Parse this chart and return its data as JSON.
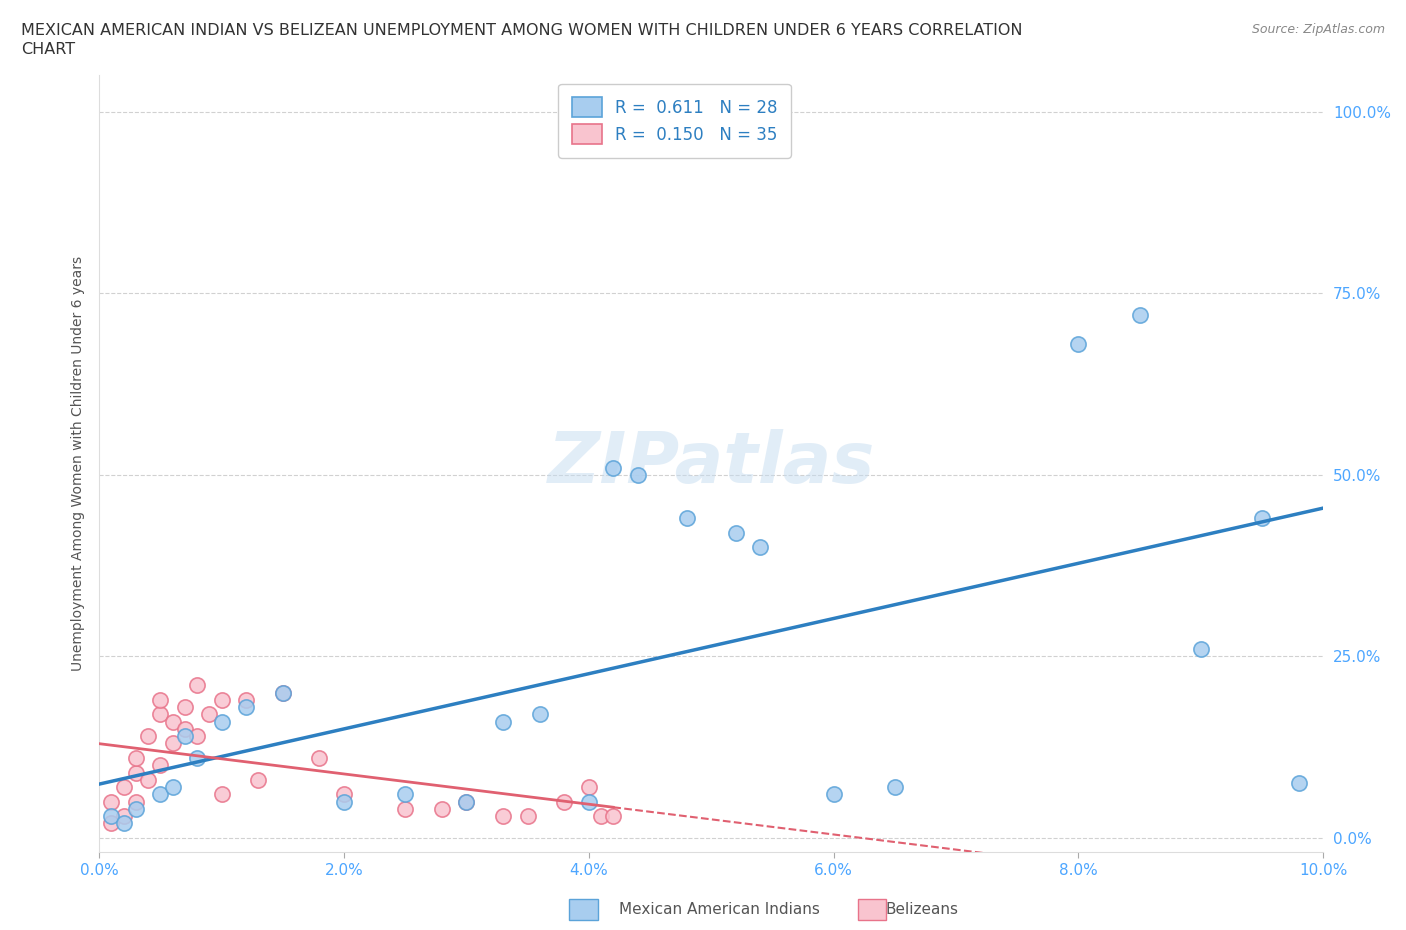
{
  "title_line1": "MEXICAN AMERICAN INDIAN VS BELIZEAN UNEMPLOYMENT AMONG WOMEN WITH CHILDREN UNDER 6 YEARS CORRELATION",
  "title_line2": "CHART",
  "source": "Source: ZipAtlas.com",
  "ylabel": "Unemployment Among Women with Children Under 6 years",
  "xlim": [
    0,
    0.1
  ],
  "ylim": [
    -0.02,
    1.05
  ],
  "blue_R": 0.611,
  "blue_N": 28,
  "pink_R": 0.15,
  "pink_N": 35,
  "blue_fill_color": "#A8CDEF",
  "pink_fill_color": "#F9C4CF",
  "blue_edge_color": "#5BA3D9",
  "pink_edge_color": "#E8738A",
  "blue_line_color": "#2D7FC1",
  "pink_line_color": "#E06070",
  "legend_R_color": "#2D7FC1",
  "axis_tick_color": "#4DA6FF",
  "blue_scatter_x": [
    0.001,
    0.002,
    0.003,
    0.005,
    0.006,
    0.007,
    0.008,
    0.01,
    0.012,
    0.015,
    0.02,
    0.025,
    0.03,
    0.033,
    0.036,
    0.04,
    0.042,
    0.044,
    0.048,
    0.052,
    0.054,
    0.06,
    0.065,
    0.08,
    0.085,
    0.09,
    0.095,
    0.098
  ],
  "blue_scatter_y": [
    0.03,
    0.02,
    0.04,
    0.06,
    0.07,
    0.14,
    0.11,
    0.16,
    0.18,
    0.2,
    0.05,
    0.06,
    0.05,
    0.16,
    0.17,
    0.05,
    0.51,
    0.5,
    0.44,
    0.42,
    0.4,
    0.06,
    0.07,
    0.68,
    0.72,
    0.26,
    0.44,
    0.075
  ],
  "pink_scatter_x": [
    0.001,
    0.001,
    0.002,
    0.002,
    0.003,
    0.003,
    0.003,
    0.004,
    0.004,
    0.005,
    0.005,
    0.005,
    0.006,
    0.006,
    0.007,
    0.007,
    0.008,
    0.008,
    0.009,
    0.01,
    0.01,
    0.012,
    0.013,
    0.015,
    0.018,
    0.02,
    0.025,
    0.028,
    0.03,
    0.033,
    0.035,
    0.038,
    0.04,
    0.041,
    0.042
  ],
  "pink_scatter_y": [
    0.02,
    0.05,
    0.03,
    0.07,
    0.05,
    0.09,
    0.11,
    0.08,
    0.14,
    0.1,
    0.17,
    0.19,
    0.13,
    0.16,
    0.15,
    0.18,
    0.14,
    0.21,
    0.17,
    0.06,
    0.19,
    0.19,
    0.08,
    0.2,
    0.11,
    0.06,
    0.04,
    0.04,
    0.05,
    0.03,
    0.03,
    0.05,
    0.07,
    0.03,
    0.03
  ],
  "background_color": "#FFFFFF",
  "grid_color": "#CCCCCC",
  "watermark_color": "#C5DCF0"
}
